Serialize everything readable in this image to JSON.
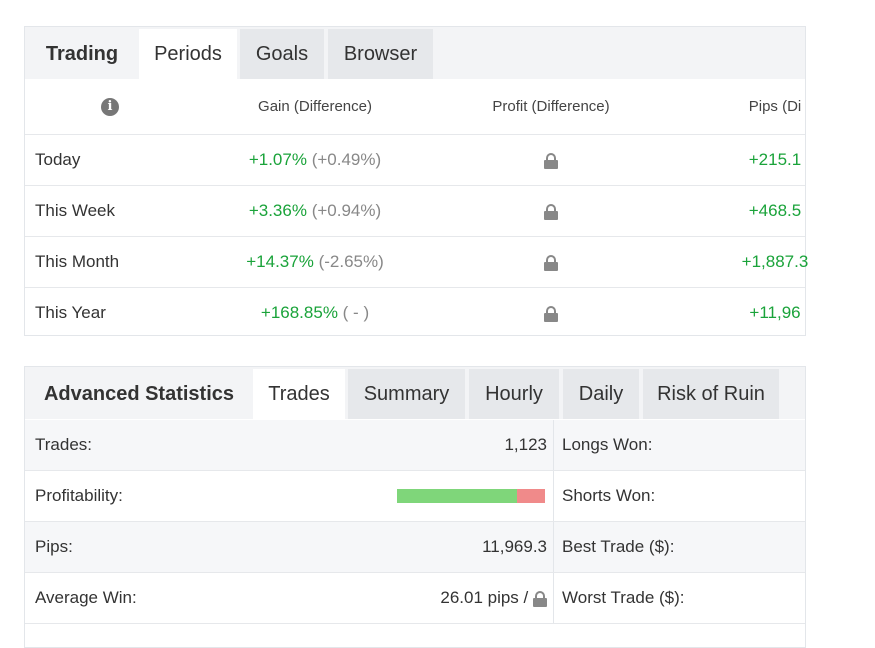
{
  "periods": {
    "tabs": [
      "Trading",
      "Periods",
      "Goals",
      "Browser"
    ],
    "columns": {
      "gain": "Gain (Difference)",
      "profit": "Profit (Difference)",
      "pips": "Pips (Di"
    },
    "rows": [
      {
        "label": "Today",
        "gain": "+1.07%",
        "diff": "(+0.49%)",
        "pips": "+215.1"
      },
      {
        "label": "This Week",
        "gain": "+3.36%",
        "diff": "(+0.94%)",
        "pips": "+468.5"
      },
      {
        "label": "This Month",
        "gain": "+14.37%",
        "diff": "(-2.65%)",
        "pips": "+1,887.3"
      },
      {
        "label": "This Year",
        "gain": "+168.85%",
        "diff": "( - )",
        "pips": "+11,96"
      }
    ]
  },
  "stats": {
    "tabs": [
      "Advanced Statistics",
      "Trades",
      "Summary",
      "Hourly",
      "Daily",
      "Risk of Ruin"
    ],
    "rows": [
      {
        "label": "Trades:",
        "value": "1,123",
        "right_label": "Longs Won:"
      },
      {
        "label": "Profitability:",
        "value": "",
        "right_label": "Shorts Won:"
      },
      {
        "label": "Pips:",
        "value": "11,969.3",
        "right_label": "Best Trade ($):"
      },
      {
        "label": "Average Win:",
        "value": "26.01 pips /",
        "right_label": "Worst Trade ($):"
      }
    ],
    "profitability": {
      "won_fraction": 0.81,
      "won_color": "#7fd67a",
      "lost_color": "#f08a8a"
    }
  },
  "colors": {
    "positive": "#1aa33a",
    "tab_bg": "#f3f4f6"
  },
  "icons": {
    "info": "info-circle-icon",
    "lock": "lock-icon"
  }
}
